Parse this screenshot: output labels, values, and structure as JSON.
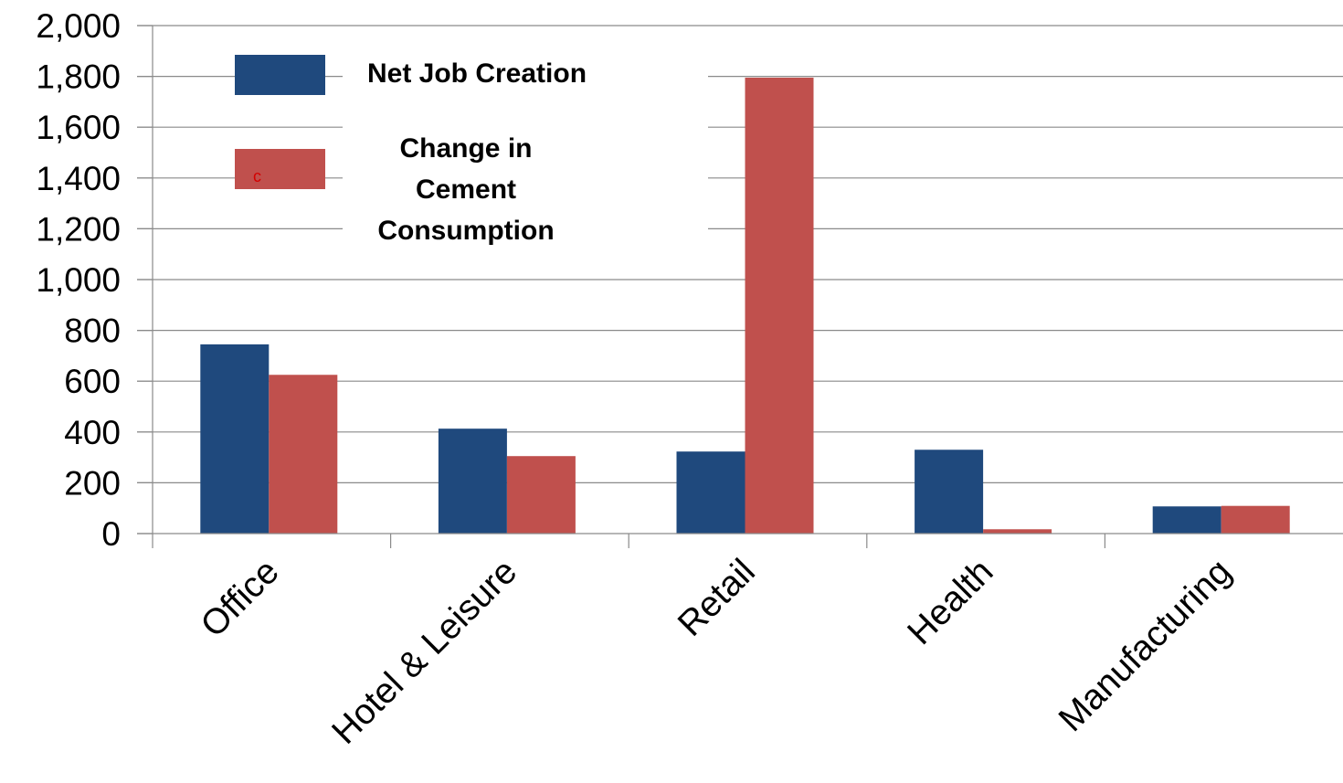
{
  "chart_data": {
    "type": "bar",
    "categories": [
      "Office",
      "Hotel & Leisure",
      "Retail",
      "Health",
      "Manufacturing"
    ],
    "series": [
      {
        "name": "Net Job Creation",
        "color": "#1f497d",
        "values": [
          745,
          413,
          323,
          330,
          107
        ]
      },
      {
        "name": "Change in Cement Consumption",
        "name_lines": [
          "Change in",
          "Cement",
          "Consumption"
        ],
        "color": "#c0504d",
        "values": [
          625,
          305,
          1795,
          17,
          109
        ],
        "legend_marker_text": "c"
      }
    ],
    "yticks": [
      "0",
      "200",
      "400",
      "600",
      "800",
      "1,000",
      "1,200",
      "1,400",
      "1,600",
      "1,800",
      "2,000"
    ],
    "ylim": [
      0,
      2000
    ],
    "grid": true,
    "legend_position": "top-left",
    "title": "",
    "xlabel": "",
    "ylabel": ""
  }
}
